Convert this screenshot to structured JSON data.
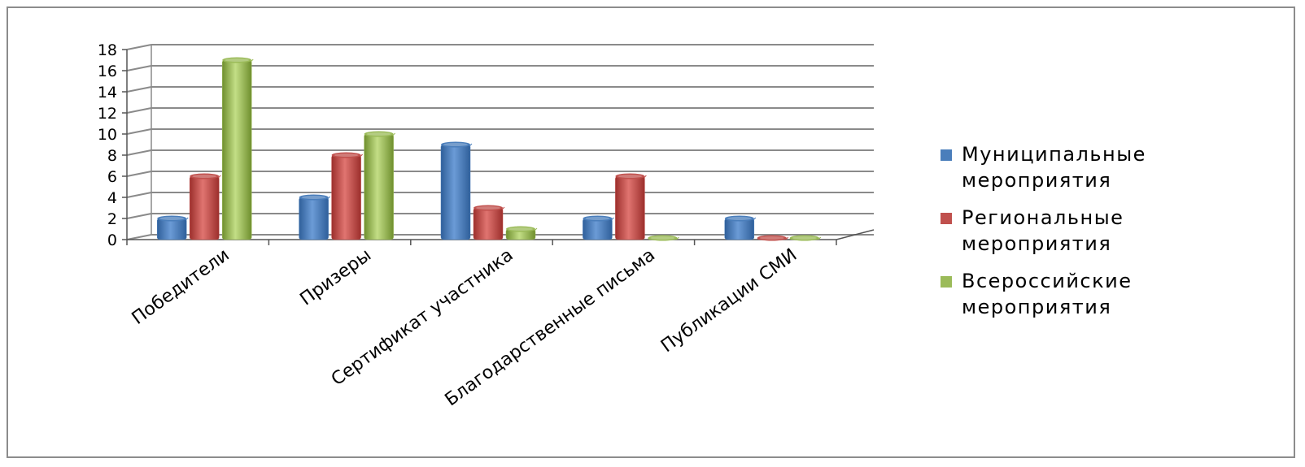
{
  "chart_data": {
    "type": "bar",
    "categories": [
      "Победители",
      "Призеры",
      "Сертификат участника",
      "Благодарственные письма",
      "Публикации СМИ"
    ],
    "series": [
      {
        "name": "Муниципальные мероприятия",
        "values": [
          2,
          4,
          9,
          2,
          2
        ],
        "color": "#4a7ebb"
      },
      {
        "name": "Региональные мероприятия",
        "values": [
          6,
          8,
          3,
          6,
          0
        ],
        "color": "#c0504d"
      },
      {
        "name": "Всероссийские мероприятия",
        "values": [
          17,
          10,
          1,
          0,
          0
        ],
        "color": "#9bbb59"
      }
    ],
    "ylim": [
      0,
      18
    ],
    "yticks": [
      0,
      2,
      4,
      6,
      8,
      10,
      12,
      14,
      16,
      18
    ],
    "grid": true,
    "legend_position": "right",
    "title": "",
    "xlabel": "",
    "ylabel": ""
  }
}
